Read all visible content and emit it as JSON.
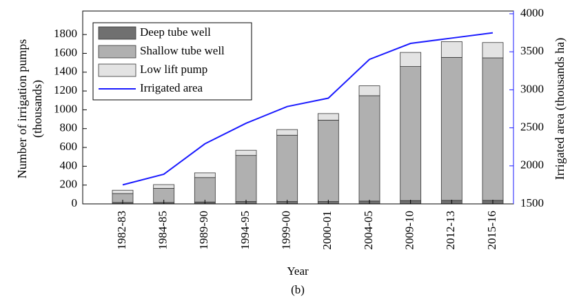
{
  "chart_data": {
    "type": "bar",
    "stacked": true,
    "x_label": "Year",
    "y_label": [
      "Number of irrigation pumps",
      "(thousands)"
    ],
    "y2_label": "Irrigated area (thousands ha)",
    "caption": "(b)",
    "categories": [
      "1982-83",
      "1984-85",
      "1989-90",
      "1994-95",
      "1999-00",
      "2000-01",
      "2004-05",
      "2009-10",
      "2012-13",
      "2015-16"
    ],
    "series": [
      {
        "name": "Deep tube well",
        "color": "#707070",
        "values": [
          15,
          15,
          20,
          25,
          25,
          25,
          30,
          35,
          37,
          37
        ]
      },
      {
        "name": "Shallow tube well",
        "color": "#b0b0b0",
        "values": [
          95,
          150,
          260,
          490,
          705,
          865,
          1120,
          1425,
          1520,
          1515
        ]
      },
      {
        "name": "Low lift pump",
        "color": "#e3e3e3",
        "values": [
          35,
          40,
          50,
          55,
          60,
          70,
          105,
          150,
          168,
          163
        ]
      },
      {
        "name": "Irrigated area",
        "type": "line",
        "axis": "y2",
        "color": "#1a1aff",
        "values": [
          1750,
          1890,
          2290,
          2560,
          2780,
          2890,
          3400,
          3610,
          3680,
          3750
        ]
      }
    ],
    "ylim": [
      0,
      2050
    ],
    "yticks": [
      0,
      200,
      400,
      600,
      800,
      1000,
      1200,
      1400,
      1600,
      1800
    ],
    "y2lim": [
      1500,
      4036
    ],
    "y2ticks": [
      1500,
      2000,
      2500,
      3000,
      3500,
      4000
    ],
    "y2_color": "#1a1aff",
    "legend": "upper left",
    "grid": false
  }
}
